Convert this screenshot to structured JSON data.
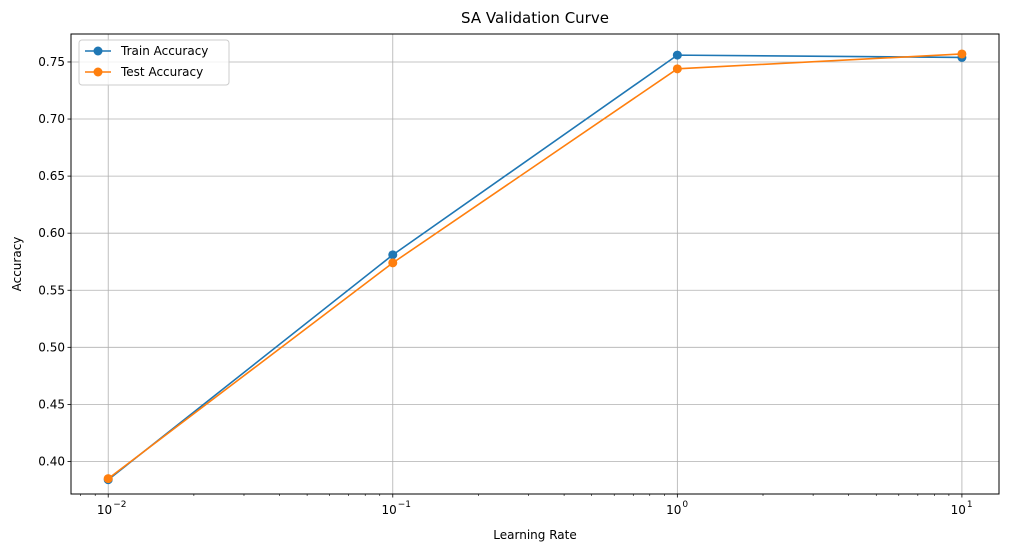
{
  "chart_data": {
    "type": "line",
    "title": "SA Validation Curve",
    "xlabel": "Learning Rate",
    "ylabel": "Accuracy",
    "x_scale": "log",
    "x": [
      0.01,
      0.1,
      1,
      10
    ],
    "xlim": [
      0.0074,
      13.5
    ],
    "ylim": [
      0.3715,
      0.7745
    ],
    "x_ticks": [
      {
        "base": "10",
        "exp": "−2",
        "value": 0.01
      },
      {
        "base": "10",
        "exp": "−1",
        "value": 0.1
      },
      {
        "base": "10",
        "exp": "0",
        "value": 1
      },
      {
        "base": "10",
        "exp": "1",
        "value": 10
      }
    ],
    "y_ticks": [
      "0.40",
      "0.45",
      "0.50",
      "0.55",
      "0.60",
      "0.65",
      "0.70",
      "0.75"
    ],
    "grid": true,
    "legend_position": "top-left",
    "series": [
      {
        "name": "Train Accuracy",
        "color": "#1f77b4",
        "values": [
          0.384,
          0.581,
          0.756,
          0.754
        ]
      },
      {
        "name": "Test Accuracy",
        "color": "#ff7f0e",
        "values": [
          0.385,
          0.574,
          0.744,
          0.757
        ]
      }
    ]
  }
}
